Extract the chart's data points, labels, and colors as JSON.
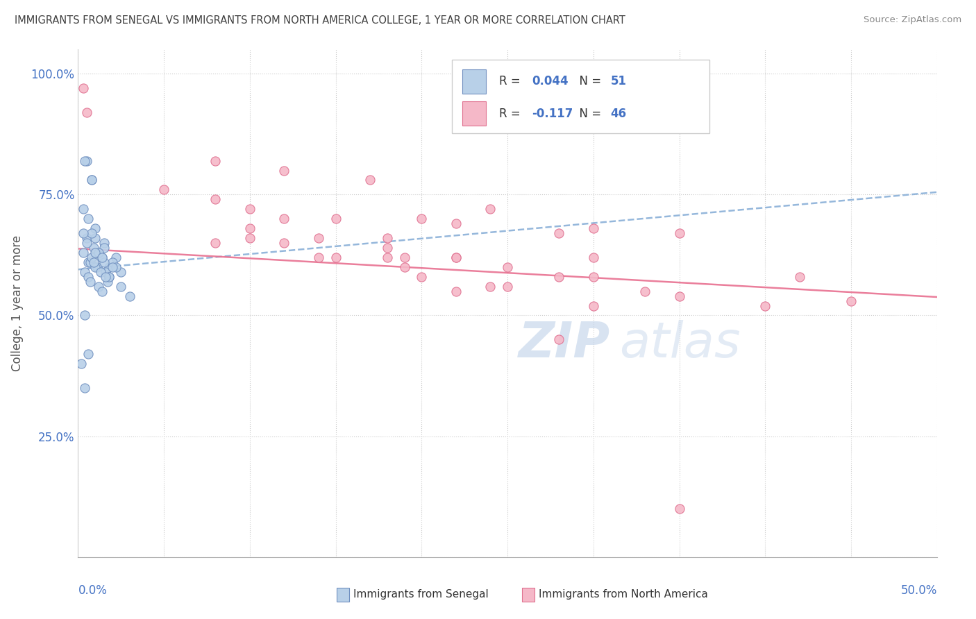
{
  "title": "IMMIGRANTS FROM SENEGAL VS IMMIGRANTS FROM NORTH AMERICA COLLEGE, 1 YEAR OR MORE CORRELATION CHART",
  "source": "Source: ZipAtlas.com",
  "ylabel": "College, 1 year or more",
  "y_ticks": [
    0.0,
    0.25,
    0.5,
    0.75,
    1.0
  ],
  "y_tick_labels": [
    "",
    "25.0%",
    "50.0%",
    "75.0%",
    "100.0%"
  ],
  "x_ticks": [
    0.0,
    0.05,
    0.1,
    0.15,
    0.2,
    0.25,
    0.3,
    0.35,
    0.4,
    0.45,
    0.5
  ],
  "legend1_R": "0.044",
  "legend1_N": "51",
  "legend2_R": "-0.117",
  "legend2_N": "46",
  "blue_fill": "#b8d0e8",
  "pink_fill": "#f5b8c8",
  "blue_edge": "#7090c0",
  "pink_edge": "#e07090",
  "blue_line": "#8ab0d8",
  "pink_line": "#e87090",
  "text_color": "#404040",
  "axis_label_color": "#4472c4",
  "watermark_color": "#c8d8ec",
  "blue_scatter_x": [
    0.005,
    0.008,
    0.003,
    0.01,
    0.015,
    0.012,
    0.006,
    0.018,
    0.004,
    0.022,
    0.009,
    0.014,
    0.007,
    0.011,
    0.016,
    0.02,
    0.005,
    0.003,
    0.008,
    0.006,
    0.012,
    0.018,
    0.025,
    0.015,
    0.01,
    0.008,
    0.004,
    0.006,
    0.014,
    0.01,
    0.007,
    0.004,
    0.002,
    0.009,
    0.013,
    0.017,
    0.025,
    0.03,
    0.008,
    0.004,
    0.006,
    0.012,
    0.015,
    0.018,
    0.022,
    0.01,
    0.014,
    0.005,
    0.003,
    0.016,
    0.02
  ],
  "blue_scatter_y": [
    0.82,
    0.78,
    0.72,
    0.68,
    0.65,
    0.63,
    0.61,
    0.6,
    0.59,
    0.62,
    0.64,
    0.62,
    0.61,
    0.6,
    0.59,
    0.61,
    0.66,
    0.63,
    0.62,
    0.58,
    0.56,
    0.58,
    0.59,
    0.64,
    0.66,
    0.67,
    0.35,
    0.42,
    0.55,
    0.6,
    0.57,
    0.5,
    0.4,
    0.61,
    0.59,
    0.57,
    0.56,
    0.54,
    0.78,
    0.82,
    0.7,
    0.63,
    0.61,
    0.58,
    0.6,
    0.63,
    0.62,
    0.65,
    0.67,
    0.58,
    0.6
  ],
  "pink_scatter_x": [
    0.003,
    0.005,
    0.12,
    0.17,
    0.24,
    0.3,
    0.2,
    0.15,
    0.35,
    0.22,
    0.28,
    0.1,
    0.08,
    0.14,
    0.19,
    0.25,
    0.3,
    0.12,
    0.18,
    0.22,
    0.28,
    0.33,
    0.4,
    0.1,
    0.08,
    0.05,
    0.15,
    0.19,
    0.24,
    0.3,
    0.35,
    0.18,
    0.22,
    0.42,
    0.45,
    0.28,
    0.1,
    0.14,
    0.35,
    0.2,
    0.25,
    0.3,
    0.08,
    0.12,
    0.18,
    0.22
  ],
  "pink_scatter_y": [
    0.97,
    0.92,
    0.8,
    0.78,
    0.72,
    0.68,
    0.7,
    0.7,
    0.67,
    0.69,
    0.67,
    0.72,
    0.74,
    0.66,
    0.62,
    0.6,
    0.62,
    0.7,
    0.64,
    0.62,
    0.58,
    0.55,
    0.52,
    0.68,
    0.65,
    0.76,
    0.62,
    0.6,
    0.56,
    0.58,
    0.54,
    0.66,
    0.62,
    0.58,
    0.53,
    0.45,
    0.66,
    0.62,
    0.1,
    0.58,
    0.56,
    0.52,
    0.82,
    0.65,
    0.62,
    0.55
  ],
  "blue_trend_x": [
    0.0,
    0.5
  ],
  "blue_trend_y": [
    0.595,
    0.755
  ],
  "pink_trend_x": [
    0.0,
    0.5
  ],
  "pink_trend_y": [
    0.638,
    0.538
  ],
  "xlim": [
    0.0,
    0.5
  ],
  "ylim": [
    0.0,
    1.05
  ]
}
